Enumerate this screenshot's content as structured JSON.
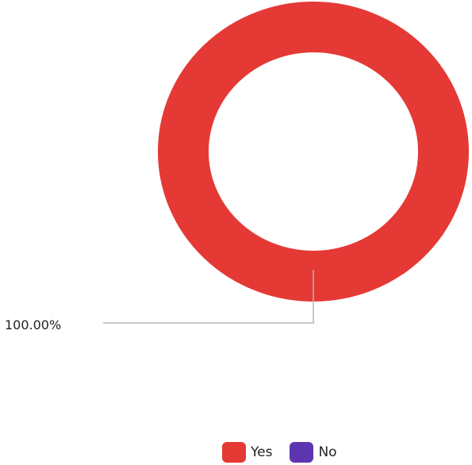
{
  "chart_data": {
    "type": "pie",
    "variant": "donut",
    "categories": [
      "Yes",
      "No"
    ],
    "values": [
      100.0,
      0.0
    ],
    "value_labels": [
      "100.00%"
    ],
    "colors": [
      "#e53935",
      "#5e35b1"
    ],
    "legend": "bottom-center",
    "title": ""
  },
  "legend": {
    "items": [
      {
        "label": "Yes",
        "color": "#e53935"
      },
      {
        "label": "No",
        "color": "#5e35b1"
      }
    ]
  }
}
